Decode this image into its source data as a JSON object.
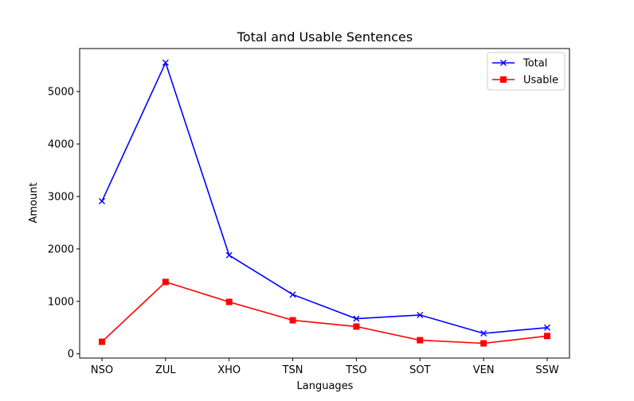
{
  "chart_data": {
    "type": "line",
    "title": "Total and Usable Sentences",
    "xlabel": "Languages",
    "ylabel": "Amount",
    "categories": [
      "NSO",
      "ZUL",
      "XHO",
      "TSN",
      "TSO",
      "SOT",
      "VEN",
      "SSW"
    ],
    "ylim": [
      -80,
      5820
    ],
    "yticks": [
      0,
      1000,
      2000,
      3000,
      4000,
      5000
    ],
    "grid": false,
    "legend_position": "top-right",
    "series": [
      {
        "name": "Total",
        "color": "#0000ff",
        "marker": "x",
        "values": [
          2910,
          5550,
          1880,
          1130,
          670,
          740,
          390,
          500
        ]
      },
      {
        "name": "Usable",
        "color": "#ff0000",
        "marker": "square",
        "values": [
          230,
          1370,
          990,
          640,
          520,
          260,
          200,
          340
        ]
      }
    ]
  }
}
